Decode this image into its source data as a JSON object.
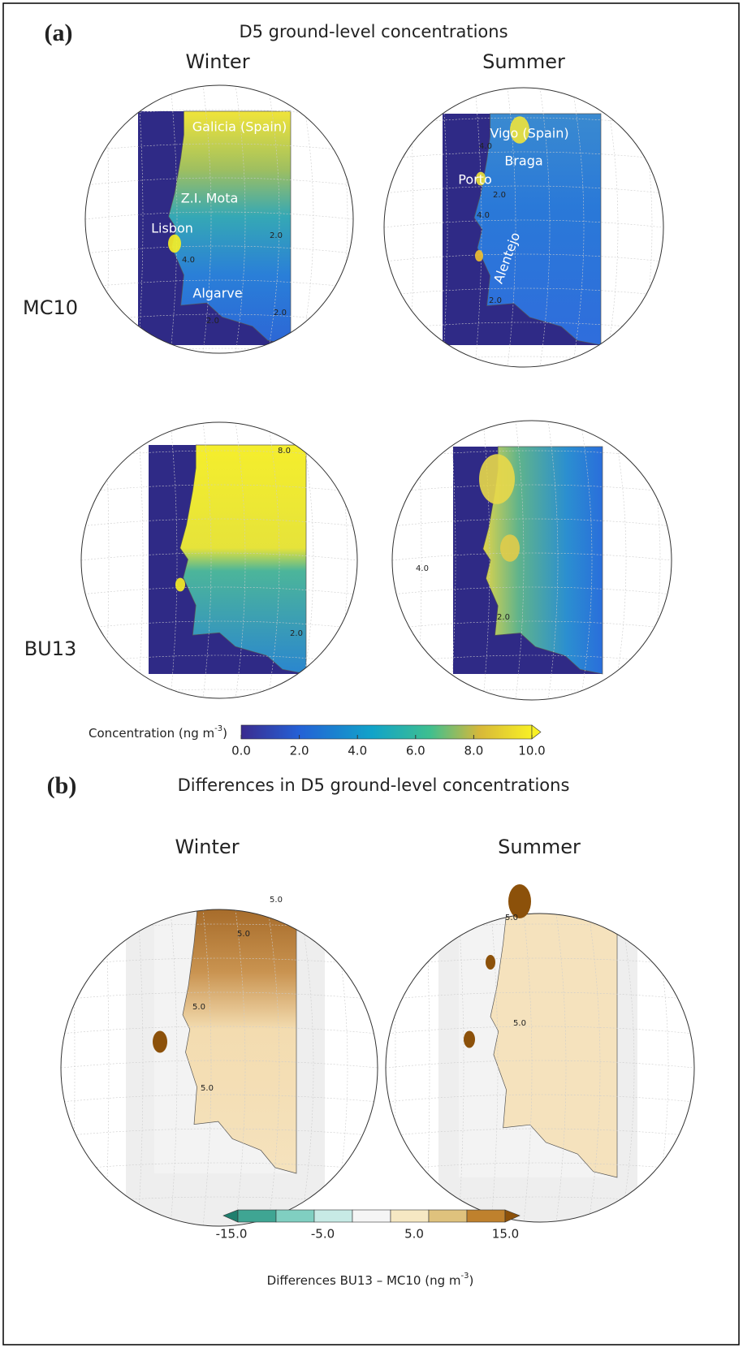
{
  "panel_a": {
    "label": "(a)",
    "title": "D5 ground-level concentrations",
    "columns": [
      "Winter",
      "Summer"
    ],
    "rows": [
      "MC10",
      "BU13"
    ],
    "place_labels": [
      "Galicia (Spain)",
      "Z.I. Mota",
      "Lisbon",
      "Algarve",
      "Vigo (Spain)",
      "Braga",
      "Porto",
      "Alentejo"
    ],
    "contour_labels": [
      "4.0",
      "2.0",
      "2.0",
      "2.0",
      "4.0",
      "2.0",
      "4.0",
      "2.0",
      "8.0",
      "2.0",
      "4.0",
      "2.0"
    ],
    "colorbar": {
      "label": [
        "Concentration (ng m",
        "-3",
        ")"
      ],
      "ticks": [
        "0.0",
        "2.0",
        "4.0",
        "6.0",
        "8.0",
        "10.0"
      ]
    }
  },
  "panel_b": {
    "label": "(b)",
    "title": "Differences in D5 ground-level concentrations",
    "columns": [
      "Winter",
      "Summer"
    ],
    "contour_labels": [
      "5.0",
      "5.0",
      "5.0",
      "5.0",
      "5.0",
      "5.0"
    ],
    "colorbar": {
      "label": [
        "Differences BU13 – MC10 (ng m",
        "-3",
        ")"
      ],
      "ticks": [
        "-15.0",
        "-5.0",
        "5.0",
        "15.0"
      ]
    }
  }
}
